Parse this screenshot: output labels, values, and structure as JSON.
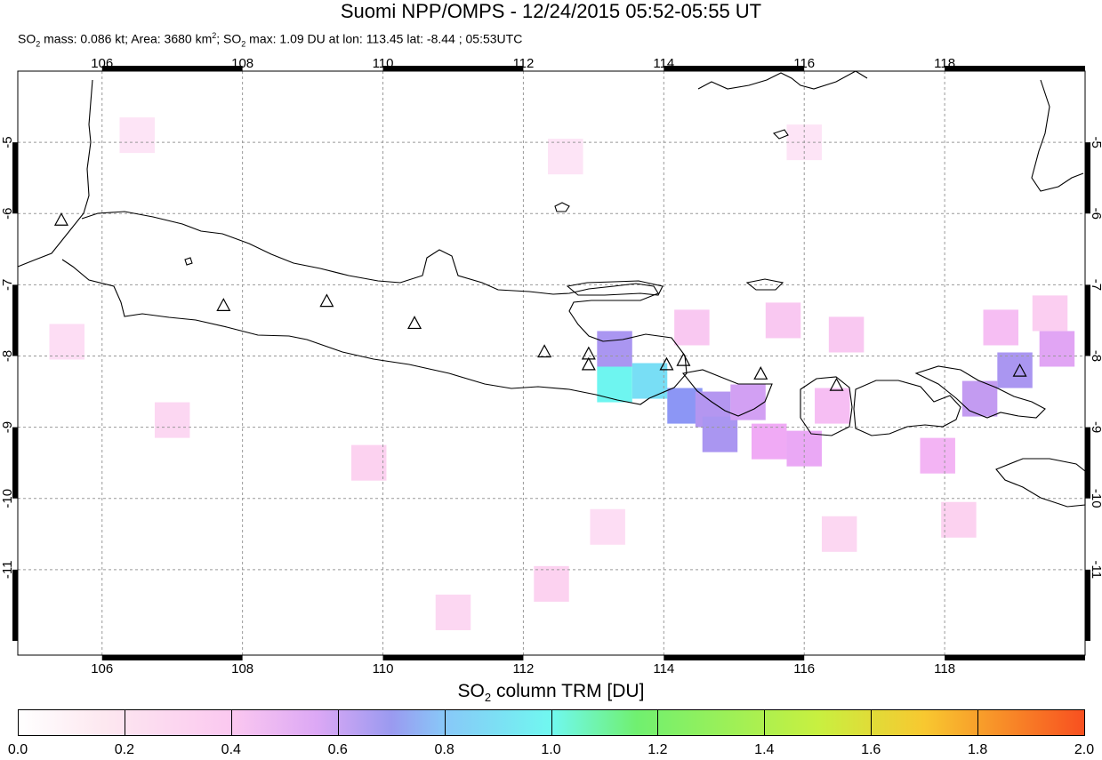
{
  "title": "Suomi NPP/OMPS - 12/24/2015 05:52-05:55 UT",
  "subtitle": {
    "so2_mass_label": "SO",
    "so2_mass_sub": "2",
    "so2_mass_text": " mass: 0.086 kt; Area: 3680 km",
    "area_sup": "2",
    "so2_max_prefix": "; SO",
    "so2_max_sub": "2",
    "so2_max_text": " max: 1.09 DU at lon: 113.45 lat: -8.44 ; 05:53UTC"
  },
  "map": {
    "lon_range": [
      104.8,
      120.0
    ],
    "lat_range": [
      -12.2,
      -4.0
    ],
    "lon_ticks": [
      "106",
      "108",
      "110",
      "112",
      "114",
      "116",
      "118"
    ],
    "lat_ticks": [
      "-5",
      "-6",
      "-7",
      "-8",
      "-9",
      "-10",
      "-11"
    ],
    "volcanoes": [
      {
        "lon": 105.42,
        "lat": -6.1
      },
      {
        "lon": 107.73,
        "lat": -7.3
      },
      {
        "lon": 109.2,
        "lat": -7.24
      },
      {
        "lon": 110.45,
        "lat": -7.55
      },
      {
        "lon": 112.3,
        "lat": -7.95
      },
      {
        "lon": 112.93,
        "lat": -7.98
      },
      {
        "lon": 112.93,
        "lat": -8.13
      },
      {
        "lon": 114.04,
        "lat": -8.13
      },
      {
        "lon": 114.28,
        "lat": -8.07
      },
      {
        "lon": 115.38,
        "lat": -8.26
      },
      {
        "lon": 116.46,
        "lat": -8.42
      },
      {
        "lon": 119.07,
        "lat": -8.22
      }
    ],
    "so2_pixels": [
      {
        "lon": 113.3,
        "lat": -7.9,
        "du": 0.65
      },
      {
        "lon": 113.3,
        "lat": -8.4,
        "du": 1.0
      },
      {
        "lon": 113.8,
        "lat": -8.35,
        "du": 0.95
      },
      {
        "lon": 114.3,
        "lat": -8.7,
        "du": 0.8
      },
      {
        "lon": 114.7,
        "lat": -8.75,
        "du": 0.6
      },
      {
        "lon": 114.8,
        "lat": -9.1,
        "du": 0.65
      },
      {
        "lon": 115.2,
        "lat": -8.65,
        "du": 0.5
      },
      {
        "lon": 115.5,
        "lat": -9.2,
        "du": 0.4
      },
      {
        "lon": 116.0,
        "lat": -9.3,
        "du": 0.42
      },
      {
        "lon": 116.4,
        "lat": -8.7,
        "du": 0.3
      },
      {
        "lon": 118.5,
        "lat": -8.6,
        "du": 0.55
      },
      {
        "lon": 119.0,
        "lat": -8.2,
        "du": 0.65
      },
      {
        "lon": 119.6,
        "lat": -7.9,
        "du": 0.45
      },
      {
        "lon": 118.8,
        "lat": -7.6,
        "du": 0.3
      },
      {
        "lon": 117.9,
        "lat": -9.4,
        "du": 0.35
      },
      {
        "lon": 114.4,
        "lat": -7.6,
        "du": 0.25
      },
      {
        "lon": 115.7,
        "lat": -7.5,
        "du": 0.25
      },
      {
        "lon": 116.6,
        "lat": -7.7,
        "du": 0.25
      },
      {
        "lon": 106.5,
        "lat": -4.9,
        "du": 0.12
      },
      {
        "lon": 112.6,
        "lat": -5.2,
        "du": 0.12
      },
      {
        "lon": 116.0,
        "lat": -5.0,
        "du": 0.12
      },
      {
        "lon": 105.5,
        "lat": -7.8,
        "du": 0.15
      },
      {
        "lon": 107.0,
        "lat": -8.9,
        "du": 0.18
      },
      {
        "lon": 109.8,
        "lat": -9.5,
        "du": 0.2
      },
      {
        "lon": 111.0,
        "lat": -11.6,
        "du": 0.18
      },
      {
        "lon": 112.4,
        "lat": -11.2,
        "du": 0.2
      },
      {
        "lon": 113.2,
        "lat": -10.4,
        "du": 0.15
      },
      {
        "lon": 116.5,
        "lat": -10.5,
        "du": 0.18
      },
      {
        "lon": 118.2,
        "lat": -10.3,
        "du": 0.2
      },
      {
        "lon": 119.5,
        "lat": -7.4,
        "du": 0.22
      }
    ]
  },
  "colorbar": {
    "title_prefix": "SO",
    "title_sub": "2",
    "title_suffix": " column TRM [DU]",
    "ticks": [
      "0.0",
      "0.2",
      "0.4",
      "0.6",
      "0.8",
      "1.0",
      "1.2",
      "1.4",
      "1.6",
      "1.8",
      "2.0"
    ],
    "min": 0.0,
    "max": 2.0
  },
  "colors": {
    "coast": "#000000",
    "grid": "#999999",
    "background": "#ffffff"
  }
}
